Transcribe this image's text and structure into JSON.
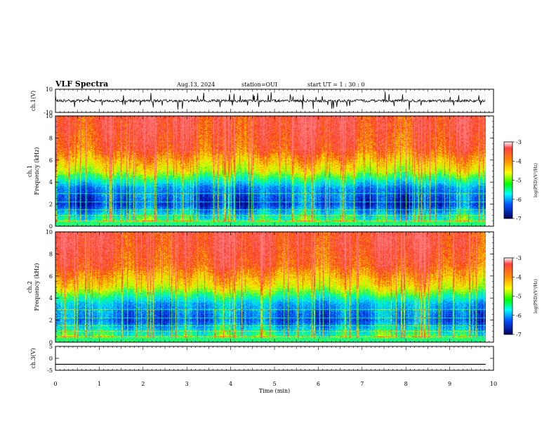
{
  "header": {
    "title": "VLF Spectra",
    "date": "Aug.13, 2024",
    "station": "station=OUI",
    "start_ut": "start  UT  =   1 : 30 : 0"
  },
  "colorbar": {
    "label": "log(PSD)(V²/Hz)",
    "ticks": [
      "-3",
      "-4",
      "-5",
      "-6",
      "-7"
    ],
    "colors": [
      "#ff2020",
      "#ffa000",
      "#ffff00",
      "#00ff00",
      "#00ffff",
      "#0060ff",
      "#000080"
    ]
  },
  "chart_data": [
    {
      "type": "line",
      "name": "waveform-ch1",
      "ylabel": "ch.1(V)",
      "ylim": [
        -10,
        10
      ],
      "yticks": [
        "10",
        "-10"
      ],
      "xlim": [
        0,
        10
      ],
      "approx_baseline": 0,
      "approx_range": [
        -8,
        8
      ]
    },
    {
      "type": "heatmap",
      "name": "spectrogram-ch1",
      "ylabel": "ch.1\nFrequency (kHz)",
      "xlim": [
        0,
        10
      ],
      "ylim": [
        0,
        10
      ],
      "yticks": [
        "0",
        "2",
        "4",
        "6",
        "8",
        "10"
      ],
      "zlim": [
        -7,
        -3
      ],
      "data_end_min": 9.82,
      "approx_log_psd_by_frequency": [
        {
          "f_khz": 0.5,
          "log_psd": -5.0
        },
        {
          "f_khz": 2.0,
          "log_psd": -6.5
        },
        {
          "f_khz": 3.5,
          "log_psd": -6.0
        },
        {
          "f_khz": 5.0,
          "log_psd": -4.5
        },
        {
          "f_khz": 7.0,
          "log_psd": -3.6
        },
        {
          "f_khz": 9.0,
          "log_psd": -3.4
        }
      ]
    },
    {
      "type": "heatmap",
      "name": "spectrogram-ch2",
      "ylabel": "ch.2\nFrequency (kHz)",
      "xlim": [
        0,
        10
      ],
      "ylim": [
        0,
        10
      ],
      "yticks": [
        "0",
        "2",
        "4",
        "6",
        "8",
        "10"
      ],
      "zlim": [
        -7,
        -3
      ],
      "data_end_min": 9.82,
      "approx_log_psd_by_frequency": [
        {
          "f_khz": 0.5,
          "log_psd": -5.0
        },
        {
          "f_khz": 2.0,
          "log_psd": -6.3
        },
        {
          "f_khz": 3.5,
          "log_psd": -5.8
        },
        {
          "f_khz": 5.0,
          "log_psd": -4.4
        },
        {
          "f_khz": 7.0,
          "log_psd": -3.6
        },
        {
          "f_khz": 9.0,
          "log_psd": -3.4
        }
      ]
    },
    {
      "type": "line",
      "name": "waveform-ch3",
      "ylabel": "ch.3(V)",
      "ylim": [
        -5,
        5
      ],
      "yticks": [
        "5",
        "0",
        "-5"
      ],
      "xlim": [
        0,
        10
      ],
      "xlabel": "Time  (min)",
      "xticks": [
        "0",
        "1",
        "2",
        "3",
        "4",
        "5",
        "6",
        "7",
        "8",
        "9",
        "10"
      ],
      "x": [
        0,
        9.82
      ],
      "y": [
        -2.5,
        -2.5
      ]
    }
  ]
}
